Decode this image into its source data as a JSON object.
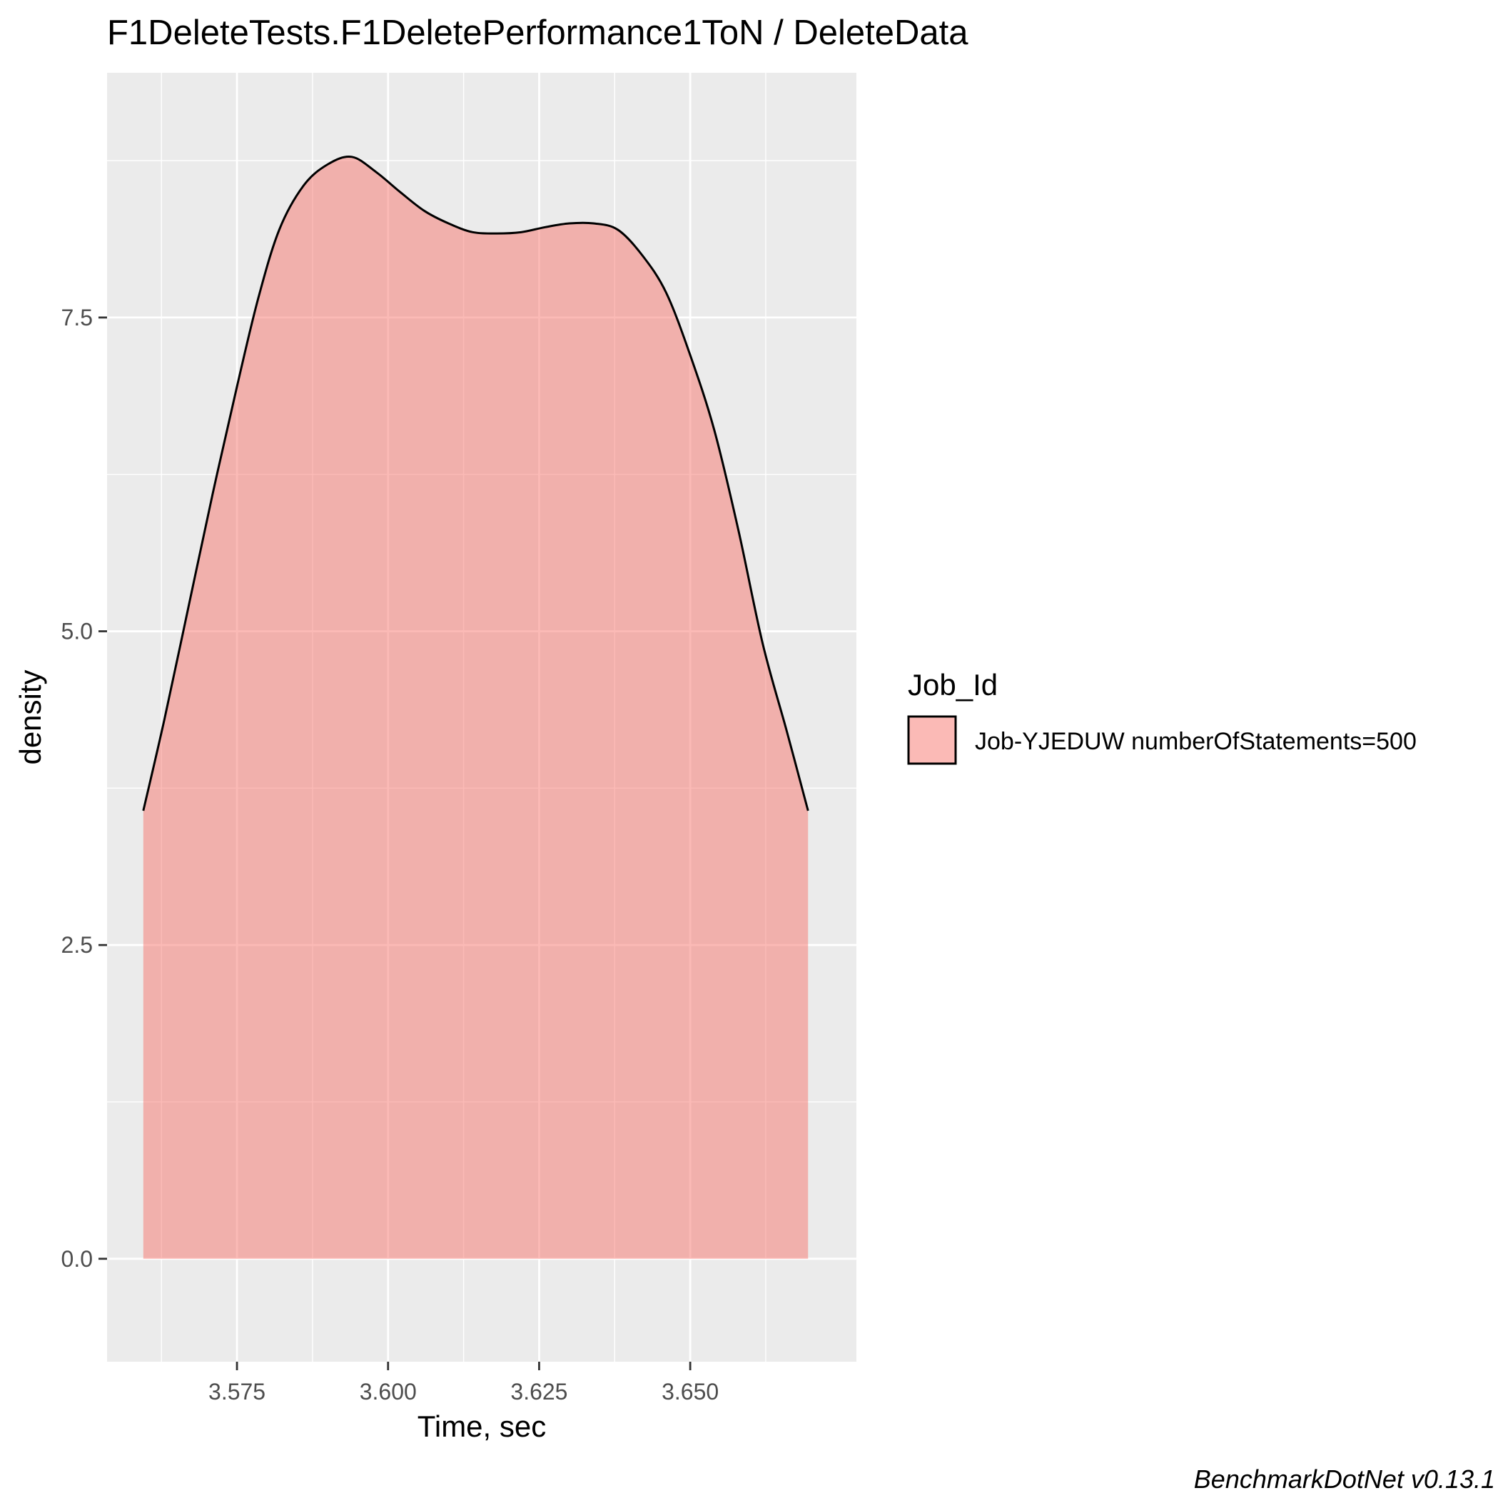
{
  "chart_data": {
    "type": "area",
    "title": "F1DeleteTests.F1DeletePerformance1ToN / DeleteData",
    "xlabel": "Time, sec",
    "ylabel": "density",
    "xlim": [
      3.5535,
      3.6775
    ],
    "ylim": [
      -0.82,
      9.45
    ],
    "x_ticks": [
      {
        "value": 3.575,
        "label": "3.575"
      },
      {
        "value": 3.6,
        "label": "3.600"
      },
      {
        "value": 3.625,
        "label": "3.625"
      },
      {
        "value": 3.65,
        "label": "3.650"
      }
    ],
    "x_minor_ticks": [
      3.5625,
      3.5875,
      3.6125,
      3.6375,
      3.6625
    ],
    "y_ticks": [
      {
        "value": 0,
        "label": "0.0"
      },
      {
        "value": 2.5,
        "label": "2.5"
      },
      {
        "value": 5,
        "label": "5.0"
      },
      {
        "value": 7.5,
        "label": "7.5"
      }
    ],
    "y_minor_ticks": [
      1.25,
      3.75,
      6.25,
      8.75
    ],
    "grid": true,
    "legend_position": "right",
    "legend_title": "Job_Id",
    "series": [
      {
        "name": "Job-YJEDUW numberOfStatements=500",
        "color": "#f8766d",
        "x": [
          3.5595,
          3.563,
          3.567,
          3.571,
          3.575,
          3.5785,
          3.582,
          3.586,
          3.59,
          3.594,
          3.598,
          3.602,
          3.606,
          3.61,
          3.614,
          3.618,
          3.622,
          3.626,
          3.63,
          3.634,
          3.638,
          3.642,
          3.646,
          3.65,
          3.654,
          3.658,
          3.662,
          3.666,
          3.6695
        ],
        "y": [
          3.57,
          4.3,
          5.2,
          6.1,
          6.95,
          7.65,
          8.2,
          8.55,
          8.72,
          8.78,
          8.66,
          8.5,
          8.35,
          8.25,
          8.18,
          8.17,
          8.18,
          8.22,
          8.25,
          8.25,
          8.2,
          8.0,
          7.7,
          7.2,
          6.6,
          5.8,
          4.9,
          4.2,
          3.57
        ]
      }
    ],
    "caption": "BenchmarkDotNet v0.13.1"
  }
}
